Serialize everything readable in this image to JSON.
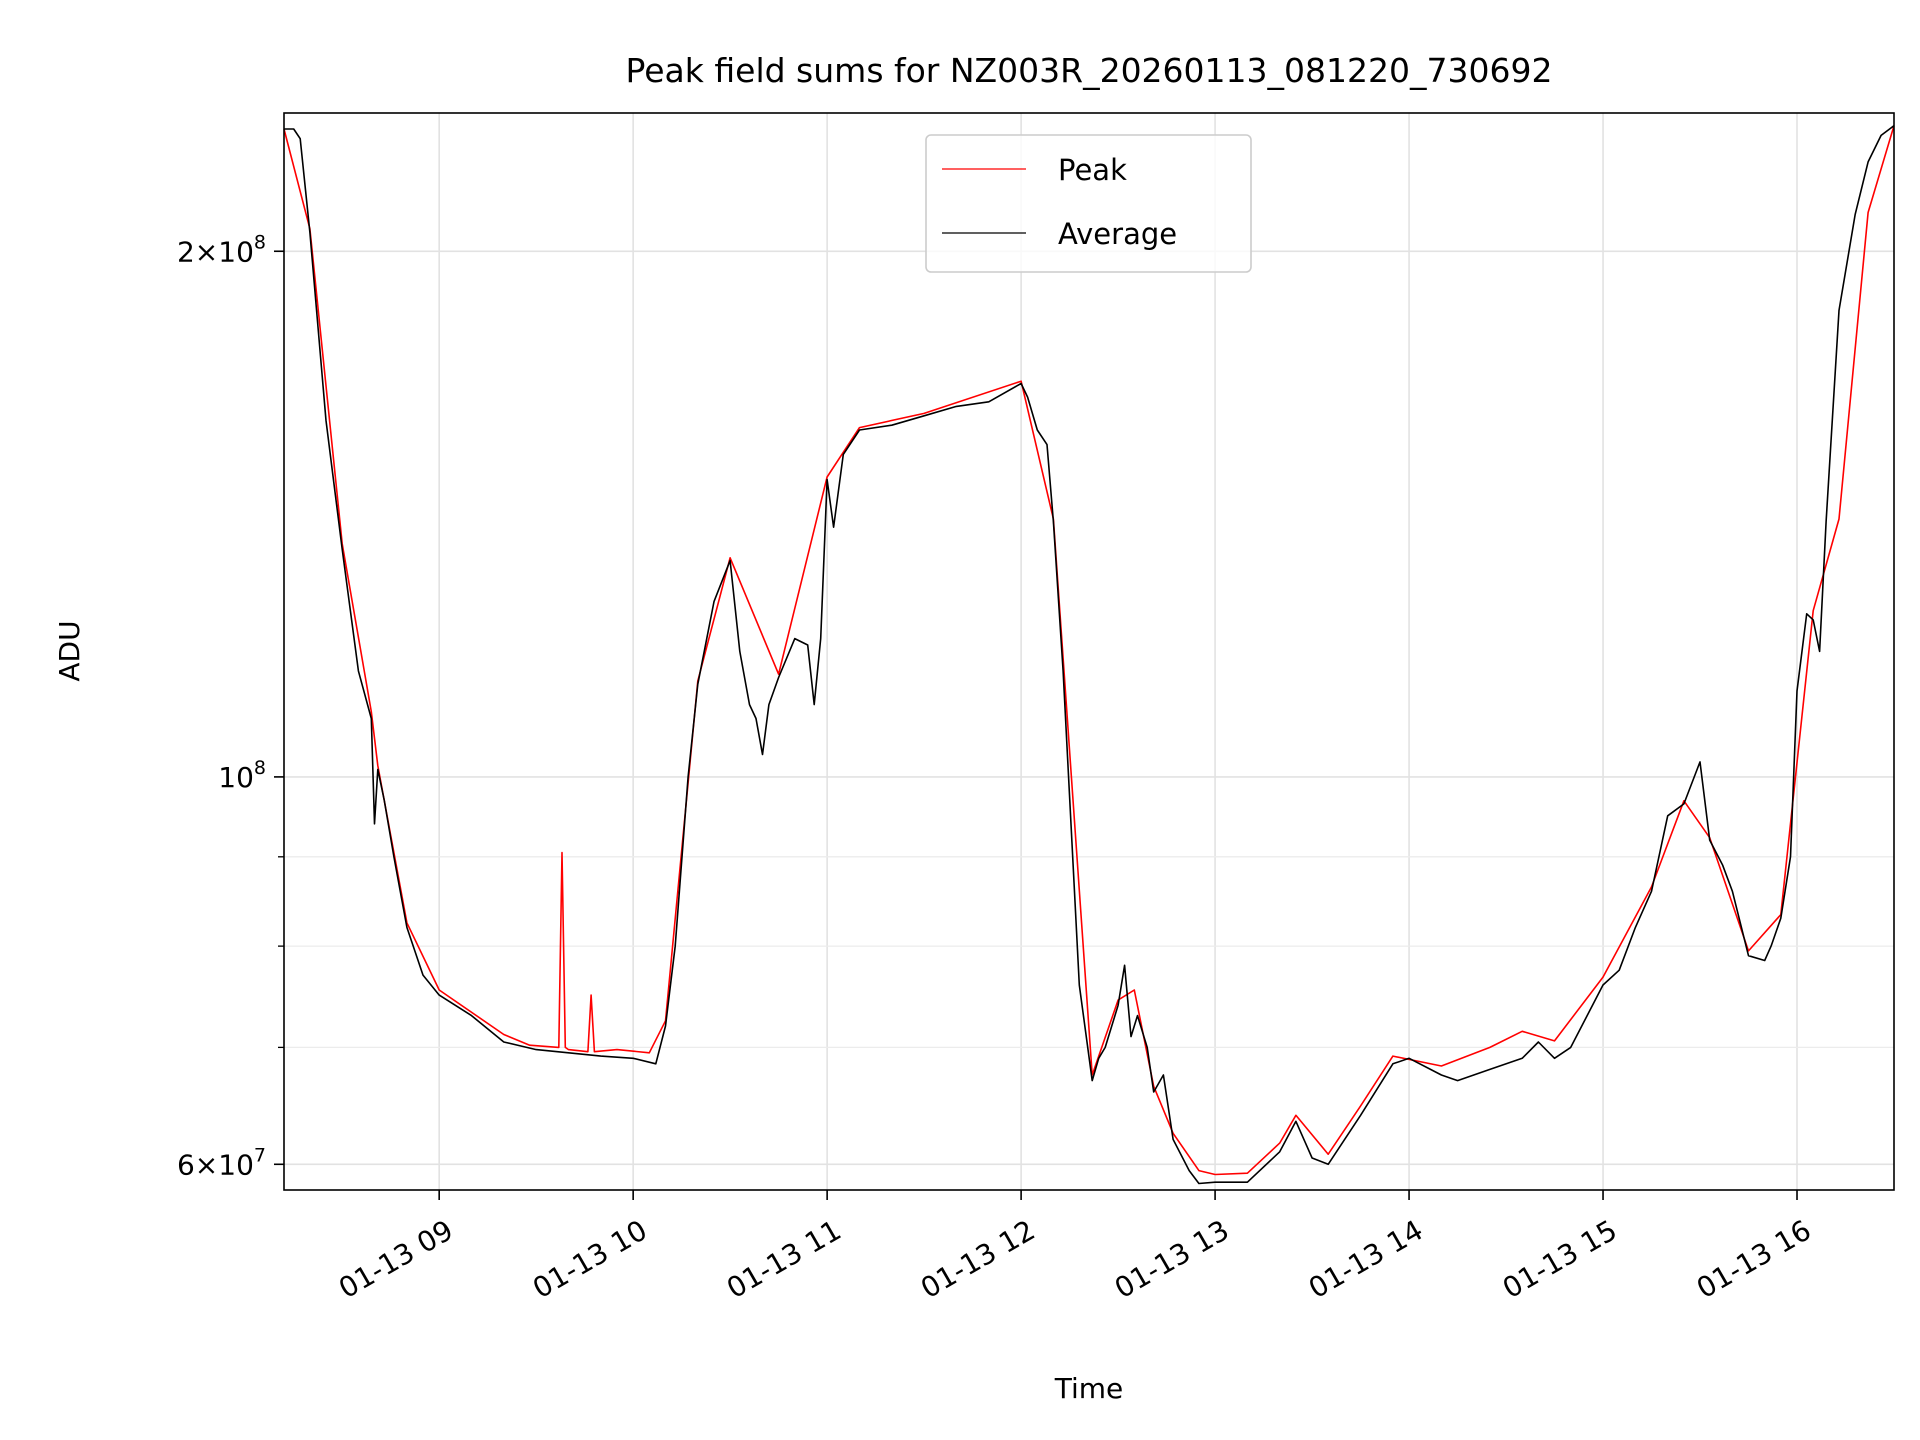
{
  "chart_data": {
    "type": "line",
    "title": "Peak field sums for NZ003R_20260113_081220_730692",
    "xlabel": "Time",
    "ylabel": "ADU",
    "yscale": "log",
    "xlim": [
      "2026-01-13T08:12",
      "2026-01-13T16:30"
    ],
    "ylim": [
      58000000,
      240000000
    ],
    "grid": true,
    "legend": {
      "placement": "top-center"
    },
    "x_ticks": [
      {
        "value": "2026-01-13T09:00",
        "label": "01-13 09"
      },
      {
        "value": "2026-01-13T10:00",
        "label": "01-13 10"
      },
      {
        "value": "2026-01-13T11:00",
        "label": "01-13 11"
      },
      {
        "value": "2026-01-13T12:00",
        "label": "01-13 12"
      },
      {
        "value": "2026-01-13T13:00",
        "label": "01-13 13"
      },
      {
        "value": "2026-01-13T14:00",
        "label": "01-13 14"
      },
      {
        "value": "2026-01-13T15:00",
        "label": "01-13 15"
      },
      {
        "value": "2026-01-13T16:00",
        "label": "01-13 16"
      }
    ],
    "y_major_ticks": [
      {
        "value": 60000000,
        "mantissa": "6",
        "base": "10",
        "exp": "7"
      },
      {
        "value": 100000000,
        "mantissa": "",
        "base": "10",
        "exp": "8"
      },
      {
        "value": 200000000,
        "mantissa": "2",
        "base": "10",
        "exp": "8"
      }
    ],
    "y_minor_ticks": [
      70000000,
      80000000,
      90000000
    ],
    "series": [
      {
        "name": "Average",
        "color": "#000000",
        "x": [
          "2026-01-13T08:12",
          "2026-01-13T08:15",
          "2026-01-13T08:17",
          "2026-01-13T08:20",
          "2026-01-13T08:25",
          "2026-01-13T08:30",
          "2026-01-13T08:35",
          "2026-01-13T08:39",
          "2026-01-13T08:40",
          "2026-01-13T08:41",
          "2026-01-13T08:43",
          "2026-01-13T08:46",
          "2026-01-13T08:50",
          "2026-01-13T08:55",
          "2026-01-13T09:00",
          "2026-01-13T09:10",
          "2026-01-13T09:20",
          "2026-01-13T09:30",
          "2026-01-13T09:40",
          "2026-01-13T09:50",
          "2026-01-13T10:00",
          "2026-01-13T10:07",
          "2026-01-13T10:10",
          "2026-01-13T10:13",
          "2026-01-13T10:17",
          "2026-01-13T10:20",
          "2026-01-13T10:25",
          "2026-01-13T10:30",
          "2026-01-13T10:33",
          "2026-01-13T10:36",
          "2026-01-13T10:38",
          "2026-01-13T10:40",
          "2026-01-13T10:42",
          "2026-01-13T10:45",
          "2026-01-13T10:50",
          "2026-01-13T10:54",
          "2026-01-13T10:56",
          "2026-01-13T10:58",
          "2026-01-13T11:00",
          "2026-01-13T11:02",
          "2026-01-13T11:05",
          "2026-01-13T11:10",
          "2026-01-13T11:20",
          "2026-01-13T11:30",
          "2026-01-13T11:40",
          "2026-01-13T11:50",
          "2026-01-13T12:00",
          "2026-01-13T12:02",
          "2026-01-13T12:05",
          "2026-01-13T12:08",
          "2026-01-13T12:10",
          "2026-01-13T12:13",
          "2026-01-13T12:18",
          "2026-01-13T12:22",
          "2026-01-13T12:24",
          "2026-01-13T12:26",
          "2026-01-13T12:30",
          "2026-01-13T12:32",
          "2026-01-13T12:34",
          "2026-01-13T12:36",
          "2026-01-13T12:39",
          "2026-01-13T12:41",
          "2026-01-13T12:44",
          "2026-01-13T12:47",
          "2026-01-13T12:52",
          "2026-01-13T12:55",
          "2026-01-13T13:00",
          "2026-01-13T13:10",
          "2026-01-13T13:20",
          "2026-01-13T13:25",
          "2026-01-13T13:30",
          "2026-01-13T13:35",
          "2026-01-13T13:45",
          "2026-01-13T13:55",
          "2026-01-13T14:00",
          "2026-01-13T14:10",
          "2026-01-13T14:15",
          "2026-01-13T14:25",
          "2026-01-13T14:35",
          "2026-01-13T14:40",
          "2026-01-13T14:45",
          "2026-01-13T14:50",
          "2026-01-13T15:00",
          "2026-01-13T15:05",
          "2026-01-13T15:10",
          "2026-01-13T15:15",
          "2026-01-13T15:20",
          "2026-01-13T15:25",
          "2026-01-13T15:30",
          "2026-01-13T15:33",
          "2026-01-13T15:37",
          "2026-01-13T15:40",
          "2026-01-13T15:45",
          "2026-01-13T15:50",
          "2026-01-13T15:52",
          "2026-01-13T15:55",
          "2026-01-13T15:58",
          "2026-01-13T16:00",
          "2026-01-13T16:03",
          "2026-01-13T16:05",
          "2026-01-13T16:07",
          "2026-01-13T16:09",
          "2026-01-13T16:13",
          "2026-01-13T16:18",
          "2026-01-13T16:22",
          "2026-01-13T16:26",
          "2026-01-13T16:30"
        ],
        "y": [
          235000000,
          235000000,
          232000000,
          205000000,
          160000000,
          135000000,
          115000000,
          108000000,
          94000000,
          101000000,
          97000000,
          90000000,
          82000000,
          77000000,
          75000000,
          73000000,
          70500000,
          69800000,
          69500000,
          69200000,
          69000000,
          68500000,
          72000000,
          80000000,
          100000000,
          113000000,
          126000000,
          133000000,
          118000000,
          110000000,
          108000000,
          103000000,
          110000000,
          114000000,
          120000000,
          119000000,
          110000000,
          120000000,
          148000000,
          139000000,
          153000000,
          158000000,
          159000000,
          161000000,
          163000000,
          164000000,
          168000000,
          165000000,
          158000000,
          155000000,
          140000000,
          115000000,
          76000000,
          67000000,
          69000000,
          70000000,
          74000000,
          78000000,
          71000000,
          73000000,
          70000000,
          66000000,
          67500000,
          62000000,
          59500000,
          58500000,
          58600000,
          58600000,
          61000000,
          63500000,
          60500000,
          60000000,
          64000000,
          68500000,
          69000000,
          67500000,
          67000000,
          68000000,
          69000000,
          70500000,
          69000000,
          70000000,
          76000000,
          77500000,
          82000000,
          86000000,
          95000000,
          96500000,
          102000000,
          92000000,
          89000000,
          86000000,
          79000000,
          78500000,
          80000000,
          83000000,
          90000000,
          112000000,
          124000000,
          123000000,
          118000000,
          140000000,
          185000000,
          210000000,
          225000000,
          233000000,
          236000000
        ]
      },
      {
        "name": "Peak",
        "color": "#ff0000",
        "x": [
          "2026-01-13T08:12",
          "2026-01-13T08:20",
          "2026-01-13T08:30",
          "2026-01-13T08:39",
          "2026-01-13T08:41",
          "2026-01-13T08:50",
          "2026-01-13T09:00",
          "2026-01-13T09:20",
          "2026-01-13T09:28",
          "2026-01-13T09:37",
          "2026-01-13T09:38",
          "2026-01-13T09:39",
          "2026-01-13T09:40",
          "2026-01-13T09:46",
          "2026-01-13T09:47",
          "2026-01-13T09:48",
          "2026-01-13T09:55",
          "2026-01-13T10:05",
          "2026-01-13T10:10",
          "2026-01-13T10:20",
          "2026-01-13T10:30",
          "2026-01-13T10:45",
          "2026-01-13T11:00",
          "2026-01-13T11:10",
          "2026-01-13T11:30",
          "2026-01-13T12:00",
          "2026-01-13T12:10",
          "2026-01-13T12:22",
          "2026-01-13T12:30",
          "2026-01-13T12:35",
          "2026-01-13T12:41",
          "2026-01-13T12:47",
          "2026-01-13T12:55",
          "2026-01-13T13:00",
          "2026-01-13T13:10",
          "2026-01-13T13:20",
          "2026-01-13T13:25",
          "2026-01-13T13:35",
          "2026-01-13T13:45",
          "2026-01-13T13:55",
          "2026-01-13T14:10",
          "2026-01-13T14:25",
          "2026-01-13T14:35",
          "2026-01-13T14:45",
          "2026-01-13T15:00",
          "2026-01-13T15:15",
          "2026-01-13T15:25",
          "2026-01-13T15:33",
          "2026-01-13T15:45",
          "2026-01-13T15:55",
          "2026-01-13T16:05",
          "2026-01-13T16:13",
          "2026-01-13T16:22",
          "2026-01-13T16:30"
        ],
        "y": [
          235000000,
          206000000,
          136000000,
          109000000,
          101500000,
          82500000,
          75500000,
          71200000,
          70200000,
          70000000,
          90500000,
          70000000,
          69800000,
          69600000,
          75000000,
          69600000,
          69800000,
          69500000,
          72500000,
          113500000,
          133500000,
          114500000,
          148500000,
          158500000,
          161500000,
          168500000,
          140500000,
          67500000,
          74500000,
          75500000,
          66500000,
          62500000,
          59500000,
          59200000,
          59300000,
          61700000,
          64000000,
          60800000,
          64800000,
          69200000,
          68300000,
          70000000,
          71500000,
          70600000,
          76800000,
          86500000,
          96900000,
          92300000,
          79500000,
          83400000,
          124500000,
          140500000,
          210500000,
          236000000
        ]
      }
    ]
  }
}
